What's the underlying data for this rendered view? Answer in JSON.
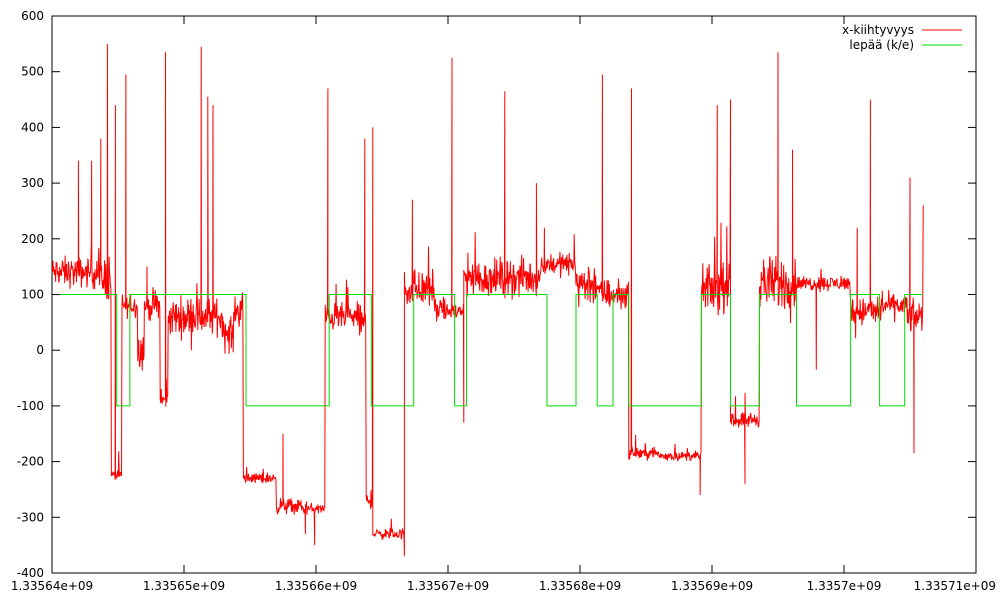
{
  "chart_data": {
    "type": "line",
    "title": "",
    "xlabel": "",
    "ylabel": "",
    "xlim": [
      1335640000,
      1335710000
    ],
    "ylim": [
      -400,
      600
    ],
    "x_ticks": [
      1335640000,
      1335650000,
      1335660000,
      1335670000,
      1335680000,
      1335690000,
      1335700000,
      1335710000
    ],
    "x_tick_labels": [
      "1.33564e+09",
      "1.33565e+09",
      "1.33566e+09",
      "1.33567e+09",
      "1.33568e+09",
      "1.33569e+09",
      "1.3357e+09",
      "1.33571e+09"
    ],
    "y_ticks": [
      -400,
      -300,
      -200,
      -100,
      0,
      100,
      200,
      300,
      400,
      500,
      600
    ],
    "y_tick_labels": [
      "-400",
      "-300",
      "-200",
      "-100",
      "0",
      "100",
      "200",
      "300",
      "400",
      "500",
      "600"
    ],
    "grid": false,
    "legend_position": "top-right",
    "series": [
      {
        "name": "x-kiihtyvyys",
        "color": "#ff0000",
        "kind": "noisy-line",
        "segments": [
          [
            1335640000,
            1335643500,
            140,
            40
          ],
          [
            1335643500,
            1335644500,
            130,
            60
          ],
          [
            1335644500,
            1335645300,
            -225,
            15
          ],
          [
            1335645300,
            1335646500,
            80,
            30
          ],
          [
            1335646500,
            1335647000,
            0,
            50
          ],
          [
            1335647000,
            1335648200,
            80,
            40
          ],
          [
            1335648200,
            1335648800,
            -90,
            20
          ],
          [
            1335648800,
            1335650700,
            60,
            50
          ],
          [
            1335650700,
            1335653000,
            60,
            50
          ],
          [
            1335653000,
            1335653800,
            30,
            50
          ],
          [
            1335653800,
            1335654500,
            70,
            40
          ],
          [
            1335654500,
            1335657000,
            -230,
            15
          ],
          [
            1335657000,
            1335659000,
            -280,
            20
          ],
          [
            1335659000,
            1335660700,
            -285,
            15
          ],
          [
            1335660700,
            1335663300,
            60,
            35
          ],
          [
            1335663300,
            1335663800,
            50,
            50
          ],
          [
            1335663800,
            1335664300,
            -270,
            20
          ],
          [
            1335664300,
            1335666700,
            -330,
            15
          ],
          [
            1335666700,
            1335669000,
            110,
            50
          ],
          [
            1335669000,
            1335671200,
            70,
            30
          ],
          [
            1335671200,
            1335677000,
            130,
            50
          ],
          [
            1335677000,
            1335679700,
            155,
            30
          ],
          [
            1335679700,
            1335681400,
            120,
            60
          ],
          [
            1335681400,
            1335683700,
            100,
            40
          ],
          [
            1335683700,
            1335686000,
            -185,
            15
          ],
          [
            1335686000,
            1335689200,
            -190,
            12
          ],
          [
            1335689200,
            1335691400,
            110,
            60
          ],
          [
            1335691400,
            1335693600,
            -125,
            20
          ],
          [
            1335693600,
            1335696400,
            120,
            70
          ],
          [
            1335696400,
            1335700500,
            120,
            20
          ],
          [
            1335700500,
            1335702800,
            70,
            40
          ],
          [
            1335702800,
            1335704800,
            80,
            30
          ],
          [
            1335704800,
            1335706000,
            60,
            40
          ]
        ],
        "spikes": [
          [
            1335642000,
            340
          ],
          [
            1335643000,
            340
          ],
          [
            1335643700,
            380
          ],
          [
            1335644200,
            550
          ],
          [
            1335644800,
            440
          ],
          [
            1335645600,
            495
          ],
          [
            1335647200,
            150
          ],
          [
            1335648600,
            535
          ],
          [
            1335651300,
            545
          ],
          [
            1335651800,
            455
          ],
          [
            1335652200,
            440
          ],
          [
            1335657500,
            -150
          ],
          [
            1335659200,
            -330
          ],
          [
            1335659900,
            -350
          ],
          [
            1335660900,
            470
          ],
          [
            1335663700,
            380
          ],
          [
            1335664300,
            400
          ],
          [
            1335666700,
            -370
          ],
          [
            1335667300,
            270
          ],
          [
            1335670300,
            525
          ],
          [
            1335671200,
            -130
          ],
          [
            1335674300,
            465
          ],
          [
            1335676700,
            300
          ],
          [
            1335677300,
            220
          ],
          [
            1335681700,
            495
          ],
          [
            1335683900,
            470
          ],
          [
            1335689100,
            -260
          ],
          [
            1335690400,
            440
          ],
          [
            1335691400,
            450
          ],
          [
            1335692500,
            -240
          ],
          [
            1335695000,
            535
          ],
          [
            1335696100,
            360
          ],
          [
            1335697900,
            -35
          ],
          [
            1335701000,
            220
          ],
          [
            1335702000,
            450
          ],
          [
            1335705000,
            310
          ],
          [
            1335705300,
            -185
          ],
          [
            1335706000,
            260
          ]
        ]
      },
      {
        "name": "lepää (k/e)",
        "color": "#00dd00",
        "kind": "step",
        "x": [
          1335640400,
          1335644900,
          1335644900,
          1335645900,
          1335645900,
          1335654700,
          1335654700,
          1335661000,
          1335661000,
          1335664200,
          1335664200,
          1335667400,
          1335667400,
          1335670500,
          1335670500,
          1335671400,
          1335671400,
          1335677500,
          1335677500,
          1335679700,
          1335679700,
          1335681300,
          1335681300,
          1335682500,
          1335682500,
          1335683700,
          1335683700,
          1335689200,
          1335689200,
          1335691400,
          1335691400,
          1335693600,
          1335693600,
          1335696400,
          1335696400,
          1335700500,
          1335700500,
          1335702700,
          1335702700,
          1335704600,
          1335704600,
          1335706000
        ],
        "y": [
          100,
          100,
          -100,
          -100,
          100,
          100,
          -100,
          -100,
          100,
          100,
          -100,
          -100,
          100,
          100,
          -100,
          -100,
          100,
          100,
          -100,
          -100,
          100,
          100,
          -100,
          -100,
          100,
          100,
          -100,
          -100,
          100,
          100,
          -100,
          -100,
          100,
          100,
          -100,
          -100,
          100,
          100,
          -100,
          -100,
          100,
          100
        ]
      }
    ]
  }
}
